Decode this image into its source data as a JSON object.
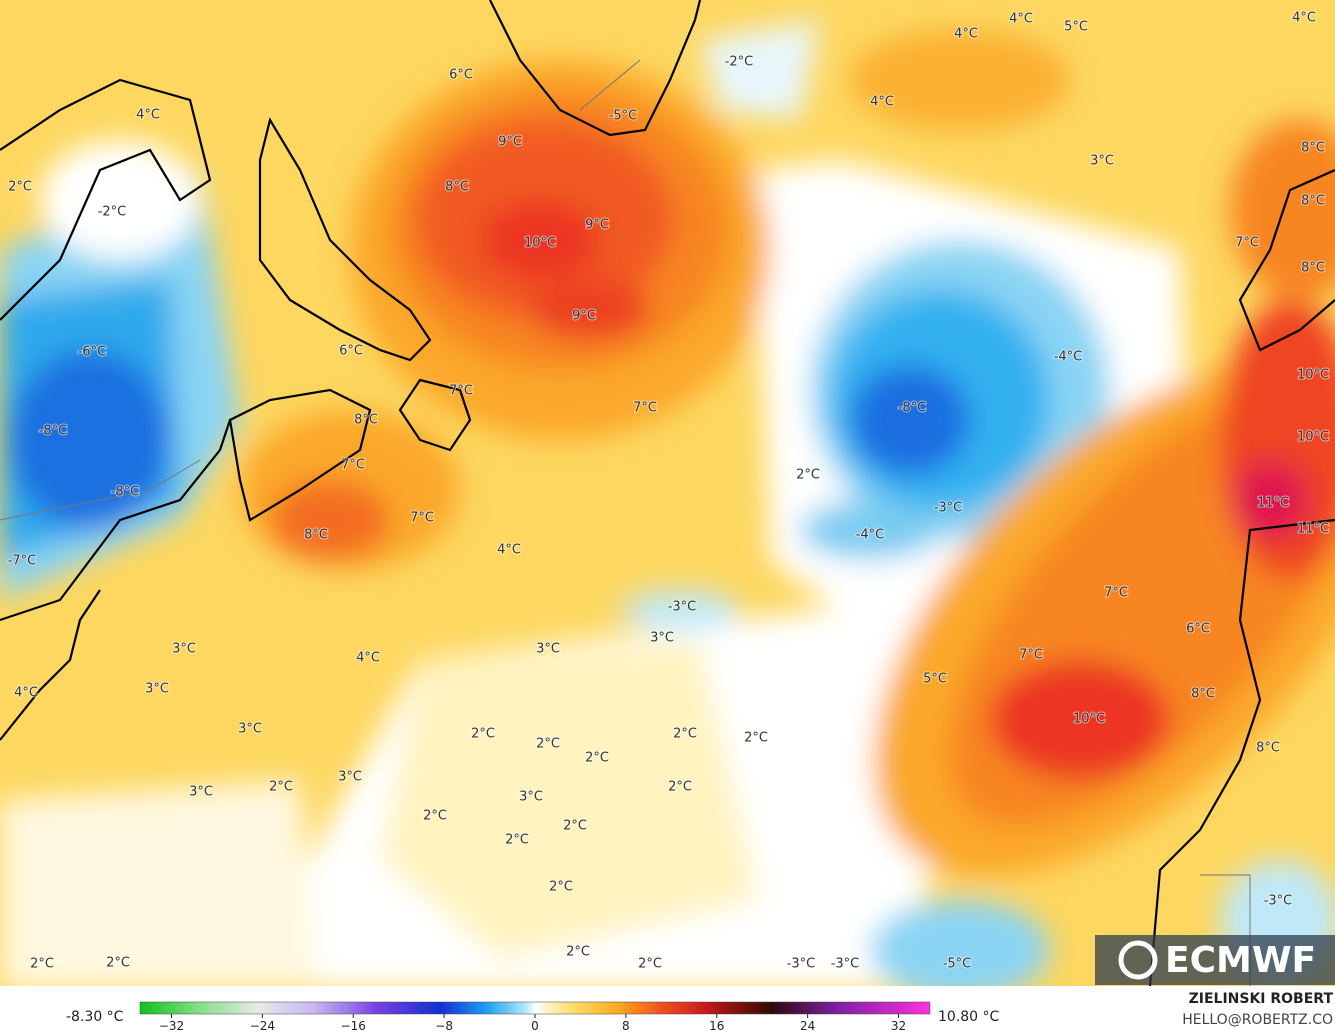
{
  "map": {
    "labels": [
      "4°C",
      "2°C",
      "-2°C",
      "-6°C",
      "-8°C",
      "-8°C",
      "-7°C",
      "6°C",
      "9°C",
      "8°C",
      "9°C",
      "10°C",
      "9°C",
      "6°C",
      "7°C",
      "8°C",
      "7°C",
      "7°C",
      "8°C",
      "7°C",
      "4°C",
      "-3°C",
      "3°C",
      "3°C",
      "4°C",
      "3°C",
      "3°C",
      "4°C",
      "3°C",
      "2°C",
      "2°C",
      "2°C",
      "2°C",
      "2°C",
      "3°C",
      "3°C",
      "2°C",
      "2°C",
      "3°C",
      "2°C",
      "2°C",
      "2°C",
      "2°C",
      "2°C",
      "2°C",
      "2°C",
      "2°C",
      "-3°C",
      "-3°C",
      "-5°C",
      "-3°C",
      "-2°C",
      "-5°C",
      "4°C",
      "4°C",
      "5°C",
      "4°C",
      "4°C",
      "3°C",
      "8°C",
      "8°C",
      "7°C",
      "8°C",
      "-4°C",
      "-8°C",
      "2°C",
      "-3°C",
      "-4°C",
      "11°C",
      "11°C",
      "10°C",
      "10°C",
      "7°C",
      "6°C",
      "7°C",
      "5°C",
      "8°C",
      "10°C",
      "8°C"
    ]
  },
  "colorbar": {
    "min_label": "-8.30 °C",
    "max_label": "10.80 °C",
    "ticks": [
      {
        "value": -32,
        "label": "−32"
      },
      {
        "value": -24,
        "label": "−24"
      },
      {
        "value": -16,
        "label": "−16"
      },
      {
        "value": -8,
        "label": "−8"
      },
      0,
      8,
      16,
      24,
      32
    ]
  },
  "credit": {
    "author": "ZIELINSKI ROBERT",
    "contact": "HELLO@ROBERTZ.CO"
  },
  "logo": "ECMWF"
}
